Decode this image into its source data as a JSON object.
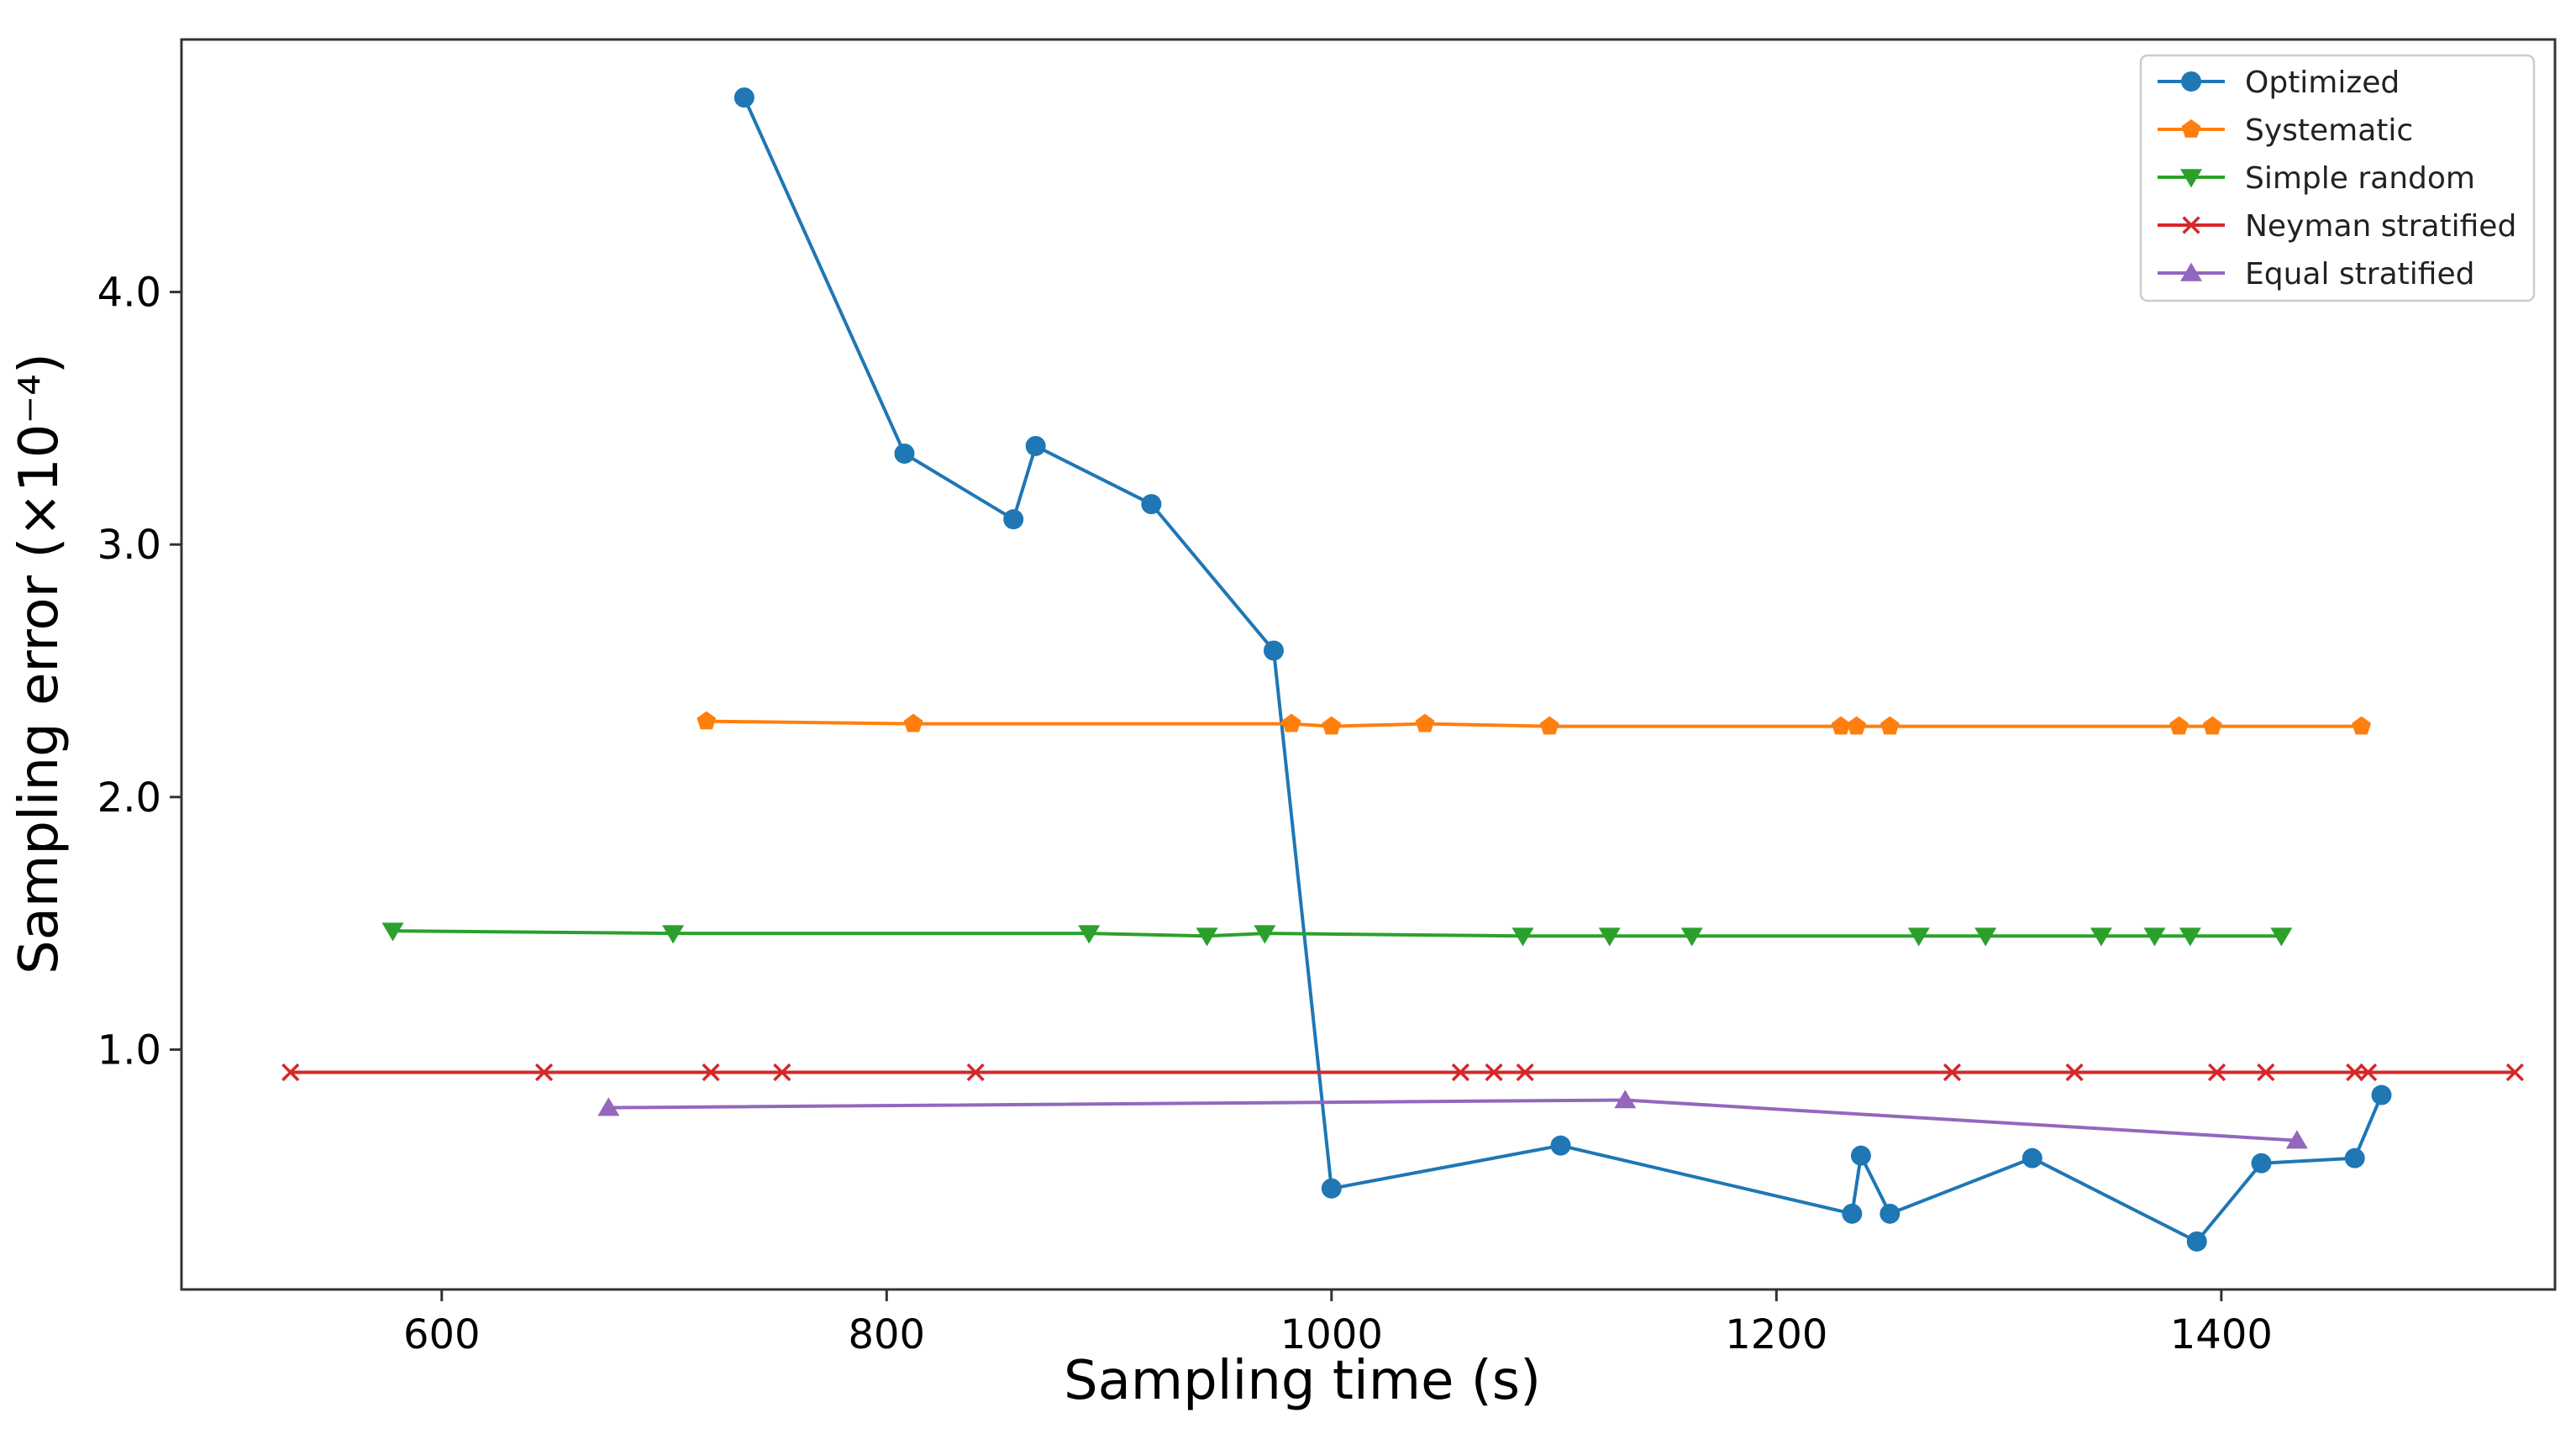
{
  "chart_data": {
    "type": "line",
    "title": "",
    "xlabel": "Sampling time (s)",
    "ylabel": "Sampling error (×10⁻⁴)",
    "xlim": [
      483,
      1550
    ],
    "ylim": [
      0.05,
      5.0
    ],
    "xticks": [
      600,
      800,
      1000,
      1200,
      1400
    ],
    "xtick_labels": [
      "600",
      "800",
      "1000",
      "1200",
      "1400"
    ],
    "yticks": [
      1.0,
      2.0,
      3.0,
      4.0
    ],
    "ytick_labels": [
      "1.0",
      "2.0",
      "3.0",
      "4.0"
    ],
    "legend_position": "top-right",
    "grid": false,
    "series": [
      {
        "name": "Optimized",
        "color": "#1f77b4",
        "marker": "circle",
        "x": [
          736,
          808,
          857,
          867,
          919,
          974,
          1000,
          1103,
          1234,
          1238,
          1251,
          1315,
          1389,
          1418,
          1460,
          1472
        ],
        "y": [
          4.77,
          3.36,
          3.1,
          3.39,
          3.16,
          2.58,
          0.45,
          0.62,
          0.35,
          0.58,
          0.35,
          0.57,
          0.24,
          0.55,
          0.57,
          0.82
        ]
      },
      {
        "name": "Systematic",
        "color": "#ff7f0e",
        "marker": "pentagon",
        "x": [
          719,
          812,
          982,
          1000,
          1042,
          1098,
          1229,
          1236,
          1251,
          1381,
          1396,
          1463
        ],
        "y": [
          2.3,
          2.29,
          2.29,
          2.28,
          2.29,
          2.28,
          2.28,
          2.28,
          2.28,
          2.28,
          2.28,
          2.28
        ]
      },
      {
        "name": "Simple random",
        "color": "#2ca02c",
        "marker": "triangle-down",
        "x": [
          578,
          704,
          891,
          944,
          970,
          1086,
          1125,
          1162,
          1264,
          1294,
          1346,
          1370,
          1386,
          1427
        ],
        "y": [
          1.47,
          1.46,
          1.46,
          1.45,
          1.46,
          1.45,
          1.45,
          1.45,
          1.45,
          1.45,
          1.45,
          1.45,
          1.45,
          1.45
        ]
      },
      {
        "name": "Neyman stratified",
        "color": "#d62728",
        "marker": "x",
        "x": [
          532,
          646,
          721,
          753,
          840,
          1058,
          1073,
          1087,
          1279,
          1334,
          1398,
          1420,
          1460,
          1466,
          1532
        ],
        "y": [
          0.91,
          0.91,
          0.91,
          0.91,
          0.91,
          0.91,
          0.91,
          0.91,
          0.91,
          0.91,
          0.91,
          0.91,
          0.91,
          0.91,
          0.91
        ]
      },
      {
        "name": "Equal stratified",
        "color": "#9467bd",
        "marker": "triangle-up",
        "x": [
          675,
          1132,
          1434
        ],
        "y": [
          0.77,
          0.8,
          0.64
        ]
      }
    ]
  }
}
